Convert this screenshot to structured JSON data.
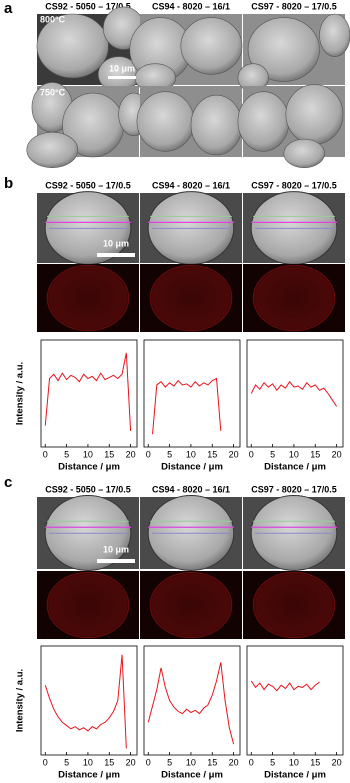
{
  "panels": [
    {
      "label": "a",
      "titles": [
        "CS92 - 5050 – 17/0.5",
        "CS94 - 8020 – 16/1",
        "CS97 - 8020 – 17/0.5"
      ],
      "temps": [
        "800°C",
        "750°C"
      ],
      "scale": "10 μm"
    },
    {
      "label": "b",
      "titles": [
        "CS92 - 5050 – 17/0.5",
        "CS94 - 8020 – 16/1",
        "CS97 - 8020 – 17/0.5"
      ],
      "scale": "10 μm"
    },
    {
      "label": "c",
      "titles": [
        "CS92 - 5050 – 17/0.5",
        "CS94 - 8020 – 16/1",
        "CS97 - 8020 – 17/0.5"
      ],
      "scale": "10 μm"
    }
  ],
  "chart_data": [
    {
      "type": "line",
      "ylabel": "Intensity / a.u.",
      "xlabel": "Distance / μm",
      "color": "#e8141b",
      "xlim": [
        -1,
        21.5
      ],
      "xticks": [
        0,
        5,
        10,
        15,
        20
      ],
      "ylim": [
        0,
        10
      ],
      "x": [
        0,
        1,
        2,
        3,
        4,
        5,
        6,
        7,
        8,
        9,
        10,
        11,
        12,
        13,
        14,
        15,
        16,
        17,
        18,
        19,
        20
      ],
      "values": [
        2.0,
        6.4,
        6.8,
        6.2,
        6.9,
        6.3,
        6.7,
        6.5,
        6.1,
        6.8,
        6.4,
        6.6,
        6.2,
        6.9,
        6.3,
        6.5,
        6.7,
        6.4,
        6.8,
        8.8,
        1.5
      ]
    },
    {
      "type": "line",
      "xlabel": "Distance / μm",
      "color": "#e8141b",
      "xlim": [
        -1,
        21.5
      ],
      "xticks": [
        0,
        5,
        10,
        15,
        20
      ],
      "ylim": [
        0,
        10
      ],
      "x": [
        1,
        2,
        3,
        4,
        5,
        6,
        7,
        8,
        9,
        10,
        11,
        12,
        13,
        14,
        15,
        16,
        17
      ],
      "values": [
        1.2,
        5.8,
        6.1,
        5.6,
        6.0,
        5.7,
        6.2,
        5.8,
        5.9,
        5.6,
        6.1,
        5.7,
        6.0,
        5.8,
        6.2,
        6.4,
        1.5
      ]
    },
    {
      "type": "line",
      "xlabel": "Distance / μm",
      "color": "#e8141b",
      "xlim": [
        -1,
        21.5
      ],
      "xticks": [
        0,
        5,
        10,
        15,
        20
      ],
      "ylim": [
        0,
        10
      ],
      "x": [
        0,
        1,
        2,
        3,
        4,
        5,
        6,
        7,
        8,
        9,
        10,
        11,
        12,
        13,
        14,
        15,
        16,
        17,
        18,
        19,
        20
      ],
      "values": [
        5.0,
        5.8,
        5.4,
        6.0,
        5.6,
        5.9,
        5.3,
        5.8,
        5.5,
        6.1,
        5.6,
        5.7,
        5.4,
        6.0,
        5.6,
        5.8,
        5.3,
        5.5,
        5.0,
        4.4,
        3.8
      ]
    },
    {
      "type": "line",
      "ylabel": "Intensity / a.u.",
      "xlabel": "Distance / μm",
      "color": "#e8141b",
      "xlim": [
        -1,
        21.5
      ],
      "xticks": [
        0,
        5,
        10,
        15,
        20
      ],
      "ylim": [
        0,
        10
      ],
      "x": [
        0,
        1,
        2,
        3,
        4,
        5,
        6,
        7,
        8,
        9,
        10,
        11,
        12,
        13,
        14,
        15,
        16,
        17,
        18,
        19
      ],
      "values": [
        6.4,
        5.2,
        4.2,
        3.5,
        3.0,
        2.7,
        2.4,
        2.6,
        2.3,
        2.5,
        2.2,
        2.6,
        2.4,
        2.8,
        3.0,
        3.4,
        4.0,
        5.0,
        9.2,
        0.6
      ]
    },
    {
      "type": "line",
      "xlabel": "Distance / μm",
      "color": "#e8141b",
      "xlim": [
        -1,
        21.5
      ],
      "xticks": [
        0,
        5,
        10,
        15,
        20
      ],
      "ylim": [
        0,
        10
      ],
      "x": [
        0,
        1,
        2,
        3,
        4,
        5,
        6,
        7,
        8,
        9,
        10,
        11,
        12,
        13,
        14,
        15,
        16,
        17,
        18,
        19,
        20
      ],
      "values": [
        3.0,
        4.5,
        6.0,
        8.0,
        6.2,
        5.0,
        4.4,
        4.0,
        3.8,
        4.2,
        3.9,
        4.1,
        3.8,
        4.3,
        4.6,
        5.5,
        6.8,
        8.5,
        5.0,
        2.5,
        1.0
      ]
    },
    {
      "type": "line",
      "xlabel": "Distance / μm",
      "color": "#e8141b",
      "xlim": [
        -1,
        21.5
      ],
      "xticks": [
        0,
        5,
        10,
        15,
        20
      ],
      "ylim": [
        0,
        10
      ],
      "x": [
        0,
        1,
        2,
        3,
        4,
        5,
        6,
        7,
        8,
        9,
        10,
        11,
        12,
        13,
        14,
        15,
        16
      ],
      "values": [
        6.8,
        6.2,
        6.6,
        6.0,
        6.5,
        6.3,
        5.9,
        6.4,
        6.1,
        6.6,
        6.0,
        6.3,
        6.2,
        6.5,
        6.0,
        6.4,
        6.7
      ]
    }
  ]
}
